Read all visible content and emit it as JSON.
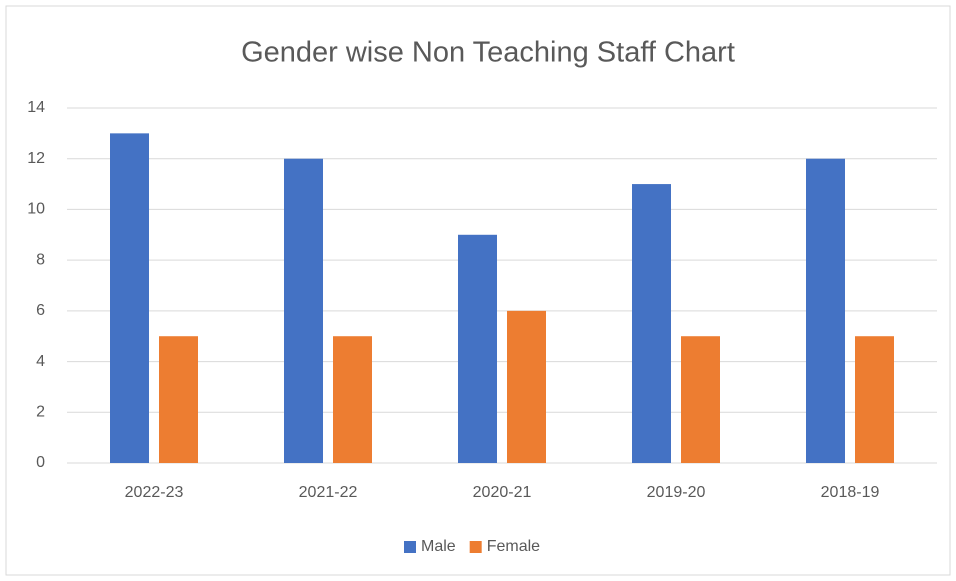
{
  "chart_data": {
    "type": "bar",
    "title": "Gender wise Non Teaching Staff Chart",
    "categories": [
      "2022-23",
      "2021-22",
      "2020-21",
      "2019-20",
      "2018-19"
    ],
    "series": [
      {
        "name": "Male",
        "color": "#4472c4",
        "values": [
          13,
          12,
          9,
          11,
          12
        ]
      },
      {
        "name": "Female",
        "color": "#ed7d31",
        "values": [
          5,
          5,
          6,
          5,
          5
        ]
      }
    ],
    "ylim": [
      0,
      14
    ],
    "yticks": [
      0,
      2,
      4,
      6,
      8,
      10,
      12,
      14
    ],
    "grid": true,
    "legend": "bottom"
  }
}
